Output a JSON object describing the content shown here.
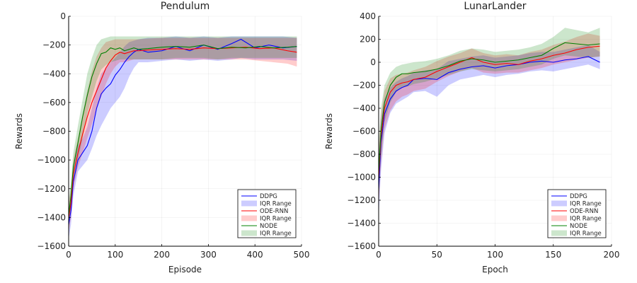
{
  "chart_data": [
    {
      "type": "line",
      "title": "Pendulum",
      "xlabel": "Episode",
      "ylabel": "Rewards",
      "xlim": [
        0,
        500
      ],
      "ylim": [
        -1600,
        0
      ],
      "xticks": [
        0,
        100,
        200,
        300,
        400,
        500
      ],
      "yticks": [
        -1600,
        -1400,
        -1200,
        -1000,
        -800,
        -600,
        -400,
        -200,
        0
      ],
      "grid": true,
      "legend_position": "bottom-right",
      "series": [
        {
          "name": "DDPG",
          "band_label": "IQR Range",
          "color": "#0000ff",
          "x": [
            0,
            5,
            10,
            20,
            30,
            40,
            50,
            60,
            70,
            80,
            90,
            100,
            110,
            120,
            130,
            140,
            150,
            170,
            200,
            230,
            260,
            290,
            320,
            350,
            370,
            400,
            430,
            460,
            490
          ],
          "y": [
            -1450,
            -1350,
            -1150,
            -1000,
            -950,
            -900,
            -800,
            -640,
            -540,
            -500,
            -470,
            -410,
            -370,
            -320,
            -280,
            -250,
            -230,
            -250,
            -240,
            -210,
            -240,
            -200,
            -230,
            -190,
            -160,
            -220,
            -200,
            -220,
            -210
          ],
          "lower": [
            -1550,
            -1450,
            -1250,
            -1080,
            -1040,
            -1000,
            -920,
            -830,
            -760,
            -700,
            -640,
            -600,
            -560,
            -500,
            -420,
            -360,
            -320,
            -320,
            -310,
            -300,
            -310,
            -300,
            -310,
            -300,
            -290,
            -300,
            -300,
            -300,
            -310
          ],
          "upper": [
            -1350,
            -1250,
            -1050,
            -900,
            -850,
            -770,
            -640,
            -500,
            -400,
            -360,
            -320,
            -290,
            -250,
            -210,
            -180,
            -170,
            -160,
            -150,
            -150,
            -140,
            -150,
            -140,
            -150,
            -140,
            -140,
            -140,
            -140,
            -140,
            -150
          ]
        },
        {
          "name": "ODE-RNN",
          "band_label": "IQR Range",
          "color": "#ff0000",
          "x": [
            0,
            5,
            10,
            20,
            30,
            40,
            50,
            60,
            70,
            80,
            90,
            100,
            110,
            120,
            130,
            140,
            150,
            170,
            200,
            230,
            260,
            290,
            320,
            350,
            380,
            410,
            440,
            470,
            490
          ],
          "y": [
            -1400,
            -1300,
            -1100,
            -950,
            -820,
            -700,
            -600,
            -520,
            -440,
            -360,
            -310,
            -270,
            -250,
            -260,
            -250,
            -240,
            -240,
            -235,
            -230,
            -225,
            -230,
            -220,
            -225,
            -220,
            -215,
            -225,
            -220,
            -240,
            -250
          ],
          "lower": [
            -1500,
            -1400,
            -1200,
            -1050,
            -950,
            -850,
            -750,
            -650,
            -560,
            -470,
            -400,
            -350,
            -320,
            -320,
            -310,
            -300,
            -300,
            -300,
            -300,
            -300,
            -300,
            -300,
            -300,
            -300,
            -300,
            -310,
            -320,
            -330,
            -350
          ],
          "upper": [
            -1300,
            -1200,
            -1000,
            -850,
            -680,
            -520,
            -380,
            -280,
            -220,
            -180,
            -170,
            -160,
            -160,
            -160,
            -160,
            -160,
            -160,
            -155,
            -150,
            -150,
            -150,
            -150,
            -150,
            -150,
            -150,
            -150,
            -150,
            -150,
            -150
          ]
        },
        {
          "name": "NODE",
          "band_label": "IQR Range",
          "color": "#008000",
          "x": [
            0,
            5,
            10,
            20,
            30,
            40,
            50,
            60,
            70,
            80,
            90,
            100,
            110,
            120,
            130,
            140,
            150,
            170,
            200,
            230,
            260,
            290,
            320,
            350,
            380,
            410,
            440,
            470,
            490
          ],
          "y": [
            -1380,
            -1250,
            -1050,
            -880,
            -700,
            -550,
            -420,
            -330,
            -260,
            -250,
            -220,
            -230,
            -220,
            -240,
            -230,
            -220,
            -230,
            -225,
            -215,
            -210,
            -215,
            -200,
            -225,
            -215,
            -220,
            -210,
            -220,
            -215,
            -210
          ],
          "lower": [
            -1480,
            -1350,
            -1150,
            -1000,
            -850,
            -680,
            -560,
            -450,
            -370,
            -340,
            -320,
            -310,
            -300,
            -300,
            -300,
            -300,
            -300,
            -300,
            -300,
            -290,
            -290,
            -290,
            -300,
            -290,
            -290,
            -290,
            -290,
            -290,
            -290
          ],
          "upper": [
            -1280,
            -1150,
            -950,
            -760,
            -580,
            -400,
            -290,
            -200,
            -160,
            -150,
            -140,
            -140,
            -140,
            -140,
            -140,
            -140,
            -140,
            -140,
            -140,
            -140,
            -140,
            -140,
            -140,
            -140,
            -140,
            -140,
            -140,
            -140,
            -140
          ]
        }
      ]
    },
    {
      "type": "line",
      "title": "LunarLander",
      "xlabel": "Epoch",
      "ylabel": "Rewards",
      "xlim": [
        0,
        200
      ],
      "ylim": [
        -1600,
        400
      ],
      "xticks": [
        0,
        50,
        100,
        150,
        200
      ],
      "yticks": [
        -1600,
        -1400,
        -1200,
        -1000,
        -800,
        -600,
        -400,
        -200,
        0,
        200,
        400
      ],
      "grid": true,
      "legend_position": "bottom-right",
      "series": [
        {
          "name": "DDPG",
          "band_label": "IQR Range",
          "color": "#0000ff",
          "x": [
            0,
            2,
            5,
            10,
            15,
            20,
            25,
            30,
            40,
            50,
            60,
            70,
            80,
            90,
            100,
            110,
            120,
            130,
            140,
            150,
            160,
            170,
            180,
            190
          ],
          "y": [
            -1100,
            -700,
            -450,
            -320,
            -250,
            -220,
            -200,
            -150,
            -140,
            -150,
            -90,
            -60,
            -40,
            -30,
            -50,
            -30,
            -20,
            0,
            10,
            0,
            20,
            30,
            50,
            0
          ],
          "lower": [
            -1350,
            -950,
            -620,
            -440,
            -360,
            -330,
            -300,
            -260,
            -250,
            -300,
            -200,
            -150,
            -130,
            -110,
            -130,
            -110,
            -100,
            -80,
            -70,
            -80,
            -60,
            -40,
            -20,
            -60
          ],
          "upper": [
            -850,
            -500,
            -320,
            -220,
            -170,
            -140,
            -120,
            -90,
            -70,
            -60,
            10,
            30,
            50,
            60,
            40,
            50,
            60,
            80,
            90,
            90,
            110,
            130,
            150,
            90
          ]
        },
        {
          "name": "ODE-RNN",
          "band_label": "IQR Range",
          "color": "#ff0000",
          "x": [
            0,
            2,
            5,
            10,
            15,
            20,
            25,
            30,
            40,
            50,
            60,
            70,
            80,
            90,
            100,
            110,
            120,
            130,
            140,
            150,
            160,
            170,
            180,
            190
          ],
          "y": [
            -1000,
            -650,
            -400,
            -260,
            -200,
            -180,
            -170,
            -150,
            -130,
            -80,
            -40,
            0,
            40,
            0,
            -20,
            -10,
            -20,
            10,
            30,
            60,
            80,
            110,
            130,
            140
          ],
          "lower": [
            -1250,
            -880,
            -580,
            -420,
            -340,
            -300,
            -280,
            -250,
            -230,
            -170,
            -120,
            -80,
            -50,
            -90,
            -100,
            -90,
            -90,
            -70,
            -50,
            -20,
            0,
            20,
            40,
            50
          ],
          "upper": [
            -750,
            -450,
            -250,
            -140,
            -110,
            -100,
            -90,
            -70,
            -40,
            10,
            50,
            80,
            120,
            80,
            60,
            70,
            60,
            90,
            110,
            150,
            180,
            220,
            250,
            230
          ]
        },
        {
          "name": "NODE",
          "band_label": "IQR Range",
          "color": "#008000",
          "x": [
            0,
            2,
            5,
            10,
            15,
            20,
            25,
            30,
            40,
            50,
            60,
            70,
            80,
            90,
            100,
            110,
            120,
            130,
            140,
            150,
            160,
            170,
            180,
            190
          ],
          "y": [
            -950,
            -600,
            -350,
            -200,
            -130,
            -100,
            -100,
            -90,
            -80,
            -60,
            -30,
            10,
            30,
            20,
            0,
            10,
            20,
            40,
            60,
            120,
            170,
            160,
            150,
            160
          ],
          "lower": [
            -1200,
            -820,
            -520,
            -350,
            -260,
            -220,
            -210,
            -190,
            -170,
            -140,
            -110,
            -80,
            -60,
            -70,
            -80,
            -70,
            -60,
            -40,
            -20,
            30,
            60,
            50,
            40,
            50
          ],
          "upper": [
            -700,
            -400,
            -200,
            -90,
            -40,
            -20,
            -10,
            0,
            10,
            30,
            60,
            100,
            120,
            110,
            90,
            100,
            110,
            130,
            160,
            220,
            300,
            280,
            260,
            300
          ]
        }
      ]
    }
  ]
}
